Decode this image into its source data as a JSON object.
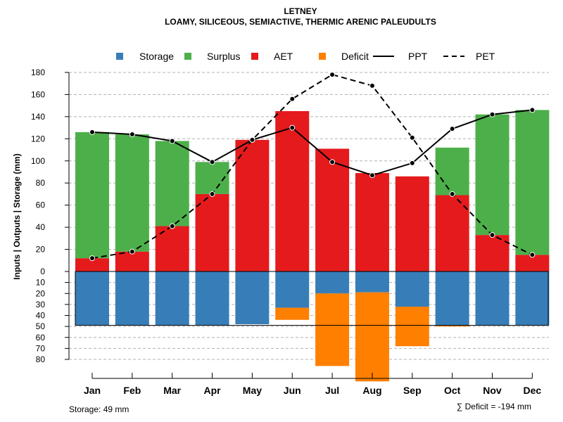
{
  "chart_data": {
    "type": "bar",
    "title": "LETNEY",
    "subtitle": "LOAMY, SILICEOUS, SEMIACTIVE, THERMIC ARENIC PALEUDULTS",
    "ylabel": "Inputs | Outputs | Storage    (mm)",
    "categories": [
      "Jan",
      "Feb",
      "Mar",
      "Apr",
      "May",
      "Jun",
      "Jul",
      "Aug",
      "Sep",
      "Oct",
      "Nov",
      "Dec"
    ],
    "ylim_upper": [
      0,
      180
    ],
    "ylim_lower": [
      0,
      80
    ],
    "yticks_upper": [
      "0",
      "20",
      "40",
      "60",
      "80",
      "100",
      "120",
      "140",
      "160",
      "180"
    ],
    "yticks_lower": [
      "10",
      "20",
      "30",
      "40",
      "50",
      "60",
      "70",
      "80"
    ],
    "storage_capacity": 49,
    "series": [
      {
        "name": "AET",
        "values": [
          12,
          18,
          41,
          70,
          119,
          145,
          111,
          89,
          86,
          69,
          33,
          15
        ]
      },
      {
        "name": "Surplus",
        "values": [
          114,
          106,
          77,
          29,
          0,
          0,
          0,
          0,
          0,
          43,
          109,
          131
        ]
      },
      {
        "name": "Storage",
        "values": [
          49,
          49,
          49,
          49,
          48,
          33,
          20,
          19,
          32,
          49,
          49,
          49
        ]
      },
      {
        "name": "Deficit",
        "values": [
          0,
          0,
          0,
          0,
          0,
          11,
          66,
          81,
          36,
          1,
          0,
          0
        ]
      },
      {
        "name": "PPT",
        "values": [
          126,
          124,
          118,
          99,
          119,
          130,
          99,
          87,
          98,
          129,
          142,
          146
        ]
      },
      {
        "name": "PET",
        "values": [
          12,
          18,
          41,
          70,
          119,
          156,
          178,
          168,
          121,
          70,
          33,
          15
        ]
      }
    ],
    "legend": {
      "position": "top",
      "items": [
        {
          "label": "Storage",
          "kind": "square",
          "color": "#377EB8"
        },
        {
          "label": "Surplus",
          "kind": "square",
          "color": "#4DAF4A"
        },
        {
          "label": "AET",
          "kind": "square",
          "color": "#E41A1C"
        },
        {
          "label": "Deficit",
          "kind": "square",
          "color": "#FF7F00"
        },
        {
          "label": "PPT",
          "kind": "solid-line",
          "color": "#000000"
        },
        {
          "label": "PET",
          "kind": "dashed-line",
          "color": "#000000"
        }
      ]
    },
    "colors": {
      "storage": "#377EB8",
      "surplus": "#4DAF4A",
      "aet": "#E41A1C",
      "deficit": "#FF7F00",
      "grid": "#b0b0b0"
    },
    "footer_left": "Storage: 49 mm",
    "footer_right": "∑ Deficit = -194 mm"
  }
}
